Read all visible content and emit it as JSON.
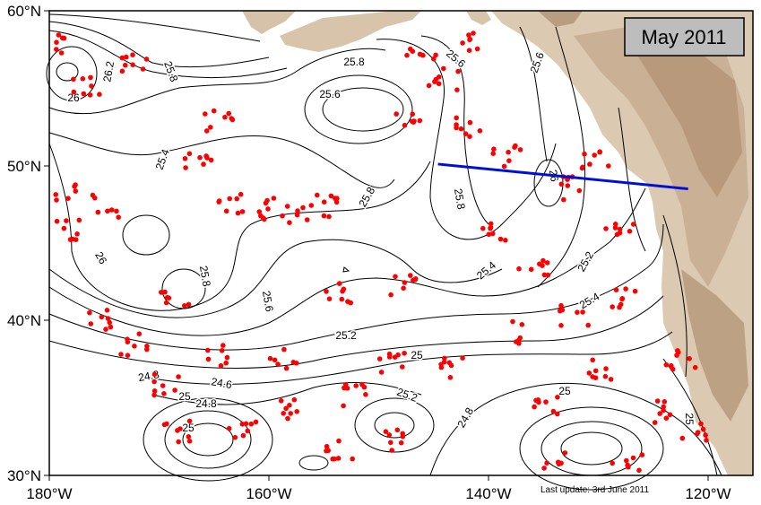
{
  "map": {
    "title": "May 2011",
    "last_update": "Last update: 3rd June 2011",
    "lon_ticks": [
      "180°W",
      "160°W",
      "140°W",
      "120°W"
    ],
    "lat_ticks": [
      "60°N",
      "50°N",
      "40°N",
      "30°N"
    ],
    "extent": {
      "lon_min": -180,
      "lon_max": -117,
      "lat_min": 30,
      "lat_max": 60
    },
    "contour_labels": [
      "26.2",
      "25.8",
      "26",
      "25.6",
      "25.8",
      "25.6",
      "25.8",
      "25.8",
      "26",
      "25.6",
      "25.4",
      "26",
      "25.8",
      "25.6",
      "25.4",
      "25.2",
      "25.4",
      "25.2",
      "25",
      "24.8",
      "24.6",
      "25",
      "24.8",
      "25",
      "25",
      "24.8",
      "25.2",
      "25"
    ],
    "section_line": {
      "start": {
        "lon": -145.2,
        "lat": 50.1
      },
      "end": {
        "lon": -122.8,
        "lat": 48.5
      },
      "color": "#0010d8"
    },
    "float_color": "#ff0000",
    "land_color": "#c8b09a",
    "float_count": 380
  }
}
